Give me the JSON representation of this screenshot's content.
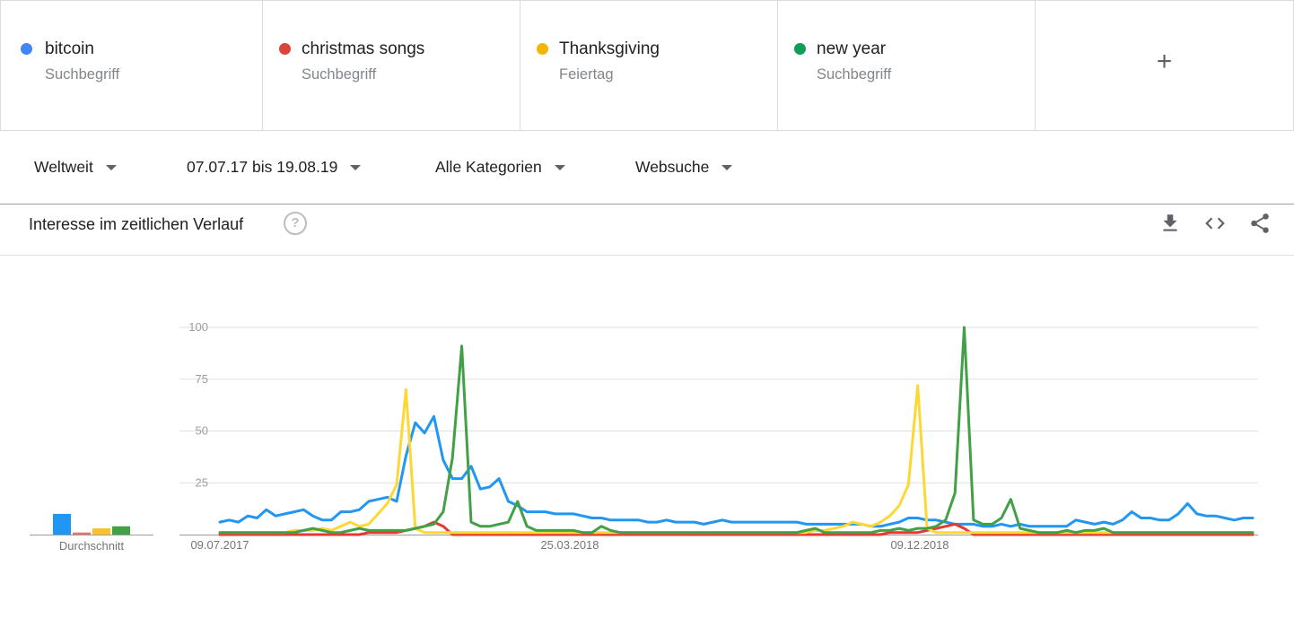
{
  "terms": [
    {
      "name": "bitcoin",
      "type": "Suchbegriff",
      "color": "#4285f4"
    },
    {
      "name": "christmas songs",
      "type": "Suchbegriff",
      "color": "#db4437"
    },
    {
      "name": "Thanksgiving",
      "type": "Feiertag",
      "color": "#f4b400"
    },
    {
      "name": "new year",
      "type": "Suchbegriff",
      "color": "#0f9d58"
    }
  ],
  "add_term_label": "+",
  "filters": {
    "region": "Weltweit",
    "date_range": "07.07.17 bis 19.08.19",
    "category": "Alle Kategorien",
    "search_type": "Websuche"
  },
  "panel": {
    "title": "Interesse im zeitlichen Verlauf",
    "help_icon": "?",
    "icons": [
      "download-icon",
      "embed-icon",
      "share-icon"
    ]
  },
  "chart_data": {
    "type": "line",
    "average_label": "Durchschnitt",
    "averages": [
      {
        "name": "bitcoin",
        "value": 10,
        "color": "#2196f3"
      },
      {
        "name": "christmas songs",
        "value": 1,
        "color": "#e57373"
      },
      {
        "name": "Thanksgiving",
        "value": 3,
        "color": "#fbc02d"
      },
      {
        "name": "new year",
        "value": 4,
        "color": "#43a047"
      }
    ],
    "ylim": [
      0,
      100
    ],
    "yticks": [
      "25",
      "50",
      "75",
      "100"
    ],
    "xtick_labels": [
      "09.07.2017",
      "25.03.2018",
      "09.12.2018"
    ],
    "series": [
      {
        "name": "bitcoin",
        "color": "#2196f3",
        "values": [
          6,
          7,
          6,
          9,
          8,
          12,
          9,
          10,
          11,
          12,
          9,
          7,
          7,
          11,
          11,
          12,
          16,
          17,
          18,
          16,
          38,
          54,
          49,
          57,
          36,
          27,
          27,
          33,
          22,
          23,
          27,
          16,
          14,
          11,
          11,
          11,
          10,
          10,
          10,
          9,
          8,
          8,
          7,
          7,
          7,
          7,
          6,
          6,
          7,
          6,
          6,
          6,
          5,
          6,
          7,
          6,
          6,
          6,
          6,
          6,
          6,
          6,
          6,
          5,
          5,
          5,
          5,
          5,
          5,
          5,
          4,
          4,
          5,
          6,
          8,
          8,
          7,
          7,
          6,
          5,
          5,
          5,
          4,
          4,
          5,
          4,
          5,
          4,
          4,
          4,
          4,
          4,
          7,
          6,
          5,
          6,
          5,
          7,
          11,
          8,
          8,
          7,
          7,
          10,
          15,
          10,
          9,
          9,
          8,
          7,
          8,
          8
        ]
      },
      {
        "name": "christmas songs",
        "color": "#e53935",
        "values": [
          0,
          0,
          0,
          0,
          0,
          0,
          0,
          0,
          0,
          0,
          0,
          0,
          0,
          0,
          0,
          0,
          1,
          1,
          1,
          1,
          2,
          3,
          4,
          6,
          4,
          0,
          0,
          0,
          0,
          0,
          0,
          0,
          0,
          0,
          0,
          0,
          0,
          0,
          0,
          0,
          0,
          0,
          0,
          0,
          0,
          0,
          0,
          0,
          0,
          0,
          0,
          0,
          0,
          0,
          0,
          0,
          0,
          0,
          0,
          0,
          0,
          0,
          0,
          0,
          0,
          0,
          0,
          0,
          0,
          0,
          0,
          0,
          1,
          1,
          1,
          1,
          2,
          3,
          4,
          5,
          3,
          0,
          0,
          0,
          0,
          0,
          0,
          0,
          0,
          0,
          0,
          0,
          0,
          0,
          0,
          0,
          0,
          0,
          0,
          0,
          0,
          0,
          0,
          0,
          0,
          0,
          0,
          0,
          0,
          0,
          0,
          0
        ]
      },
      {
        "name": "Thanksgiving",
        "color": "#fdd835",
        "values": [
          1,
          1,
          1,
          1,
          1,
          1,
          1,
          1,
          2,
          2,
          2,
          3,
          2,
          4,
          6,
          4,
          5,
          10,
          15,
          24,
          70,
          3,
          1,
          1,
          1,
          1,
          1,
          1,
          1,
          1,
          1,
          1,
          1,
          1,
          1,
          1,
          1,
          1,
          1,
          1,
          1,
          1,
          1,
          1,
          1,
          1,
          1,
          1,
          1,
          1,
          1,
          1,
          1,
          1,
          1,
          1,
          1,
          1,
          1,
          1,
          1,
          1,
          1,
          1,
          2,
          2,
          3,
          4,
          6,
          5,
          4,
          6,
          9,
          14,
          24,
          72,
          3,
          1,
          1,
          1,
          1,
          1,
          1,
          1,
          1,
          1,
          1,
          1,
          1,
          1,
          1,
          1,
          1,
          1,
          1,
          1,
          1,
          1,
          1,
          1,
          1,
          1,
          1,
          1,
          1,
          1,
          1,
          1,
          1,
          1,
          1,
          1
        ]
      },
      {
        "name": "new year",
        "color": "#43a047",
        "values": [
          1,
          1,
          1,
          1,
          1,
          1,
          1,
          1,
          1,
          2,
          3,
          2,
          1,
          1,
          2,
          3,
          2,
          2,
          2,
          2,
          2,
          3,
          4,
          5,
          11,
          37,
          91,
          6,
          4,
          4,
          5,
          6,
          16,
          4,
          2,
          2,
          2,
          2,
          2,
          1,
          1,
          4,
          2,
          1,
          1,
          1,
          1,
          1,
          1,
          1,
          1,
          1,
          1,
          1,
          1,
          1,
          1,
          1,
          1,
          1,
          1,
          1,
          1,
          2,
          3,
          1,
          1,
          1,
          1,
          1,
          1,
          2,
          2,
          3,
          2,
          3,
          3,
          4,
          7,
          20,
          100,
          7,
          5,
          5,
          8,
          17,
          3,
          2,
          1,
          1,
          1,
          2,
          1,
          2,
          2,
          3,
          1,
          1,
          1,
          1,
          1,
          1,
          1,
          1,
          1,
          1,
          1,
          1,
          1,
          1,
          1,
          1
        ]
      }
    ]
  }
}
